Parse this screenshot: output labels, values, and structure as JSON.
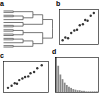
{
  "chart_data": [
    {
      "type": "dendrogram",
      "title": "a",
      "color": "#555555",
      "tree": [
        [
          [
            [
              [],
              []
            ],
            [
              [],
              [
                [],
                []
              ]
            ]
          ],
          [
            [
              [],
              []
            ],
            [
              [],
              []
            ]
          ]
        ],
        [
          [
            [
              [],
              []
            ],
            []
          ],
          [
            [
              [],
              [
                [],
                []
              ]
            ],
            [
              [],
              []
            ]
          ]
        ]
      ]
    },
    {
      "type": "scatter",
      "title": "b",
      "color": "#333333",
      "x": [
        0.08,
        0.15,
        0.22,
        0.3,
        0.38,
        0.45,
        0.52,
        0.6,
        0.66,
        0.72,
        0.8,
        0.88
      ],
      "values": [
        0.12,
        0.2,
        0.18,
        0.33,
        0.4,
        0.42,
        0.55,
        0.58,
        0.7,
        0.68,
        0.82,
        0.9
      ],
      "xlim": [
        0,
        1
      ],
      "ylim": [
        0,
        1
      ],
      "tick_labels": false
    },
    {
      "type": "scatter",
      "title": "c",
      "color": "#333333",
      "x": [
        0.1,
        0.18,
        0.25,
        0.3,
        0.35,
        0.42,
        0.48,
        0.55,
        0.6,
        0.68,
        0.75,
        0.85
      ],
      "values": [
        0.15,
        0.22,
        0.3,
        0.28,
        0.4,
        0.45,
        0.5,
        0.52,
        0.62,
        0.66,
        0.78,
        0.88
      ],
      "xlim": [
        0,
        1
      ],
      "ylim": [
        0,
        1
      ],
      "tick_labels": false
    },
    {
      "type": "histogram",
      "title": "d",
      "color": "#888888",
      "bins": [
        0,
        1,
        2,
        3,
        4,
        5,
        6,
        7,
        8,
        9,
        10,
        11,
        12,
        13,
        14,
        15,
        16,
        17,
        18,
        19,
        20
      ],
      "values": [
        60,
        45,
        30,
        22,
        16,
        12,
        9,
        7,
        5,
        4,
        3,
        3,
        2,
        2,
        1,
        1,
        1,
        1,
        1,
        1
      ],
      "xlim": [
        0,
        20
      ],
      "ylim": [
        0,
        60
      ],
      "tick_labels": false
    }
  ]
}
